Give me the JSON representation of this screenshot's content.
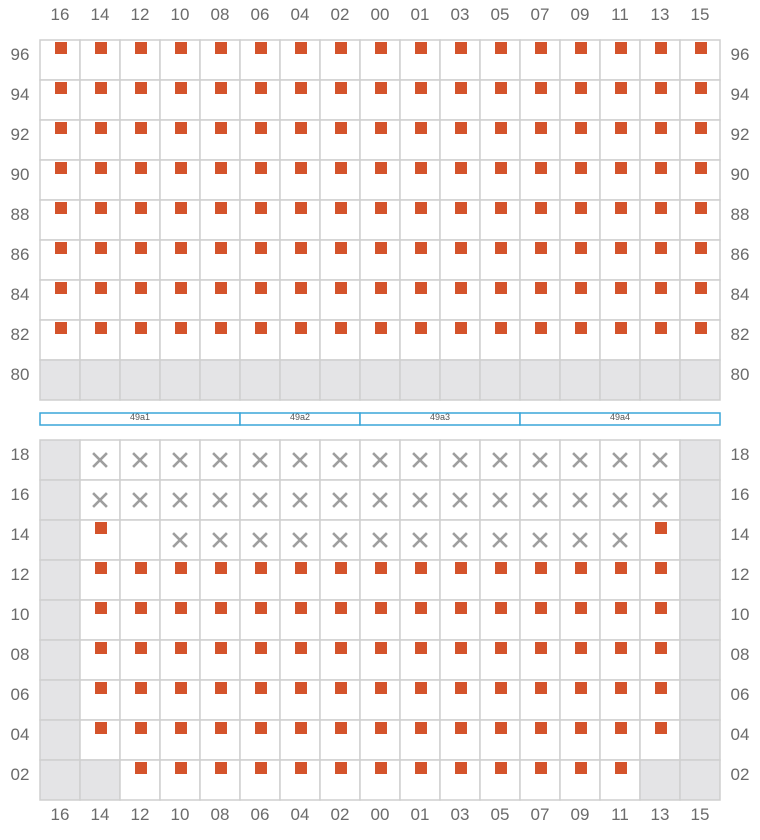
{
  "columns": [
    "16",
    "14",
    "12",
    "10",
    "08",
    "06",
    "04",
    "02",
    "00",
    "01",
    "03",
    "05",
    "07",
    "09",
    "11",
    "13",
    "15"
  ],
  "upper": {
    "rows": [
      "96",
      "94",
      "92",
      "90",
      "88",
      "86",
      "84",
      "82",
      "80"
    ],
    "cells": [
      "SSSSSSSSSSSSSSSSS",
      "SSSSSSSSSSSSSSSSS",
      "SSSSSSSSSSSSSSSSS",
      "SSSSSSSSSSSSSSSSS",
      "SSSSSSSSSSSSSSSSS",
      "SSSSSSSSSSSSSSSSS",
      "SSSSSSSSSSSSSSSSS",
      "SSSSSSSSSSSSSSSSS",
      "GGGGGGGGGGGGGGGGG"
    ]
  },
  "lower": {
    "rows": [
      "18",
      "16",
      "14",
      "12",
      "10",
      "08",
      "06",
      "04",
      "02"
    ],
    "cells": [
      "GXXXXXXXXXXXXXXXG",
      "GXXXXXXXXXXXXXXXG",
      "GS.XXXXXXXXXXXXSG",
      "GSSSSSSSSSSSSSSSG",
      "GSSSSSSSSSSSSSSSG",
      "GSSSSSSSSSSSSSSSG",
      "GSSSSSSSSSSSSSSSG",
      "GSSSSSSSSSSSSSSSG",
      "GGSSSSSSSSSSSSSGG"
    ]
  },
  "sections": [
    {
      "label": "49a1",
      "start_col": 0,
      "end_col": 4
    },
    {
      "label": "49a2",
      "start_col": 5,
      "end_col": 7
    },
    {
      "label": "49a3",
      "start_col": 8,
      "end_col": 11
    },
    {
      "label": "49a4",
      "start_col": 12,
      "end_col": 16
    }
  ],
  "legend": {
    "S": "available-seat",
    "X": "unavailable-seat",
    "G": "no-seat",
    ".": "empty"
  },
  "colors": {
    "seat": "#d4532b",
    "unavailable": "#9e9e9e",
    "no_seat": "#e4e4e6",
    "grid": "#cfcfcf",
    "label": "#6b6b6b",
    "section": "#3aa6d8"
  }
}
